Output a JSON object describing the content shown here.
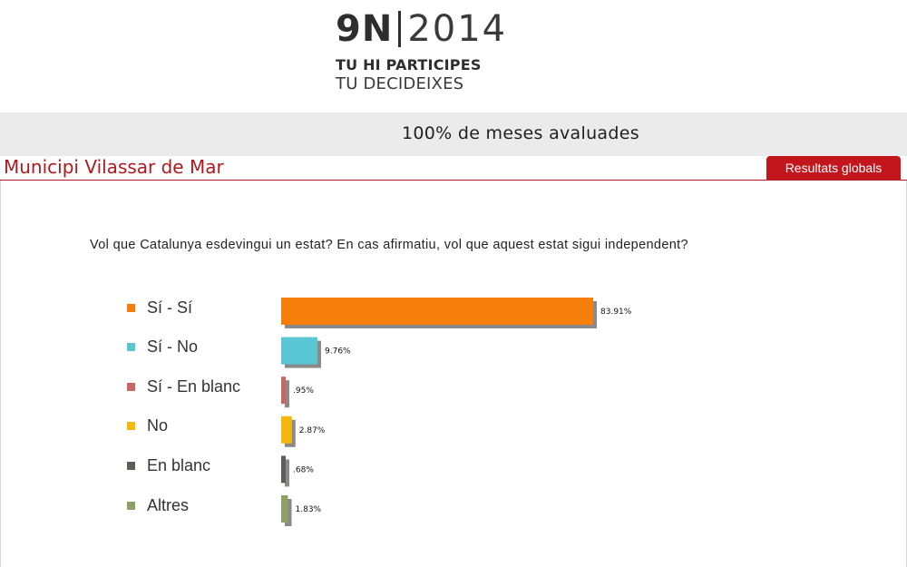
{
  "logo": {
    "brand": "9N",
    "year": "2014",
    "line1": "TU HI PARTICIPES",
    "line2": "TU DECIDEIXES"
  },
  "status": {
    "text": "100% de meses avaluades"
  },
  "municipality": {
    "title": "Municipi Vilassar de Mar"
  },
  "global_button": {
    "label": "Resultats globals"
  },
  "question": {
    "text": "Vol que Catalunya esdevingui un estat? En cas afirmatiu, vol que aquest estat sigui independent?"
  },
  "chart_data": {
    "type": "bar",
    "orientation": "horizontal",
    "categories": [
      "Sí - Sí",
      "Sí - No",
      "Sí - En blanc",
      "No",
      "En blanc",
      "Altres"
    ],
    "values": [
      83.91,
      9.76,
      0.95,
      2.87,
      0.68,
      1.83
    ],
    "value_labels": [
      "83.91%",
      "9.76%",
      ".95%",
      "2.87%",
      ".68%",
      "1.83%"
    ],
    "colors": [
      "#f57f0a",
      "#5bc6d3",
      "#c86766",
      "#f2b90c",
      "#5e5e58",
      "#8ea165"
    ],
    "title": "",
    "xlabel": "",
    "ylabel": "",
    "xlim": [
      0,
      100
    ],
    "grid": false,
    "legend": "left"
  }
}
